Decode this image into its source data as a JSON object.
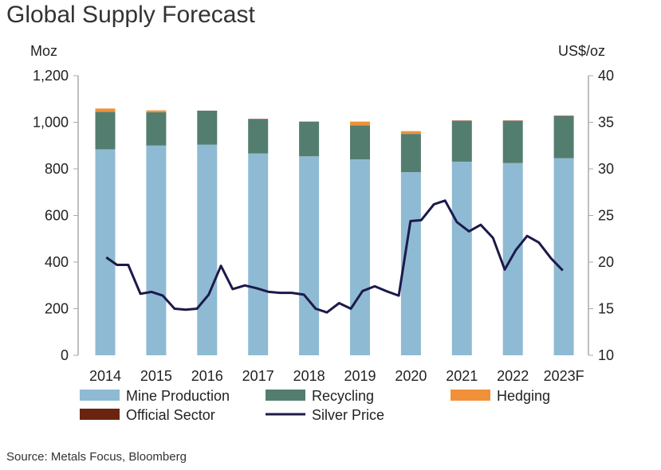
{
  "chart_data": {
    "type": "bar",
    "title": "Global Supply Forecast",
    "ylabel": "Moz",
    "y2label": "US$/oz",
    "ylim": [
      0,
      1200
    ],
    "y2lim": [
      10,
      40
    ],
    "yticks": [
      "0",
      "200",
      "400",
      "600",
      "800",
      "1,000",
      "1,200"
    ],
    "y2ticks": [
      "10",
      "15",
      "20",
      "25",
      "30",
      "35",
      "40"
    ],
    "categories": [
      "2014",
      "2015",
      "2016",
      "2017",
      "2018",
      "2019",
      "2020",
      "2021",
      "2022",
      "2023F"
    ],
    "stacked": true,
    "grid": false,
    "legend_position": "bottom",
    "series": [
      {
        "name": "Mine Production",
        "color": "#8fbad3",
        "values": [
          884,
          900,
          904,
          866,
          854,
          841,
          786,
          831,
          825,
          846
        ]
      },
      {
        "name": "Recycling",
        "color": "#537d6e",
        "values": [
          161,
          143,
          146,
          146,
          149,
          146,
          164,
          174,
          180,
          180
        ]
      },
      {
        "name": "Hedging",
        "color": "#f0913a",
        "values": [
          14,
          8,
          0,
          0,
          0,
          16,
          12,
          0,
          0,
          0
        ]
      },
      {
        "name": "Official Sector",
        "color": "#6b2410",
        "values": [
          0,
          0,
          0,
          2,
          0,
          0,
          0,
          2,
          2,
          2
        ]
      }
    ],
    "line_series": {
      "name": "Silver Price",
      "color": "#1c1a4a",
      "axis": "right",
      "x": [
        2014.02,
        2014.23,
        2014.45,
        2014.69,
        2014.91,
        2015.13,
        2015.36,
        2015.58,
        2015.8,
        2016.03,
        2016.27,
        2016.5,
        2016.74,
        2016.97,
        2017.21,
        2017.43,
        2017.66,
        2017.9,
        2018.13,
        2018.35,
        2018.59,
        2018.82,
        2019.05,
        2019.29,
        2019.51,
        2019.76,
        2019.99,
        2020.2,
        2020.45,
        2020.67,
        2020.9,
        2021.14,
        2021.37,
        2021.61,
        2021.84,
        2022.06,
        2022.28,
        2022.51,
        2022.75,
        2022.98
      ],
      "y": [
        20.5,
        19.7,
        19.7,
        16.6,
        16.8,
        16.4,
        15.0,
        14.9,
        15.0,
        16.5,
        19.6,
        17.1,
        17.5,
        17.2,
        16.8,
        16.7,
        16.7,
        16.5,
        15.0,
        14.6,
        15.6,
        15.0,
        16.9,
        17.4,
        16.9,
        16.4,
        24.4,
        24.5,
        26.2,
        26.6,
        24.3,
        23.3,
        24.0,
        22.6,
        19.2,
        21.3,
        22.8,
        22.1,
        20.4,
        19.1
      ]
    }
  },
  "source": "Source: Metals Focus, Bloomberg"
}
